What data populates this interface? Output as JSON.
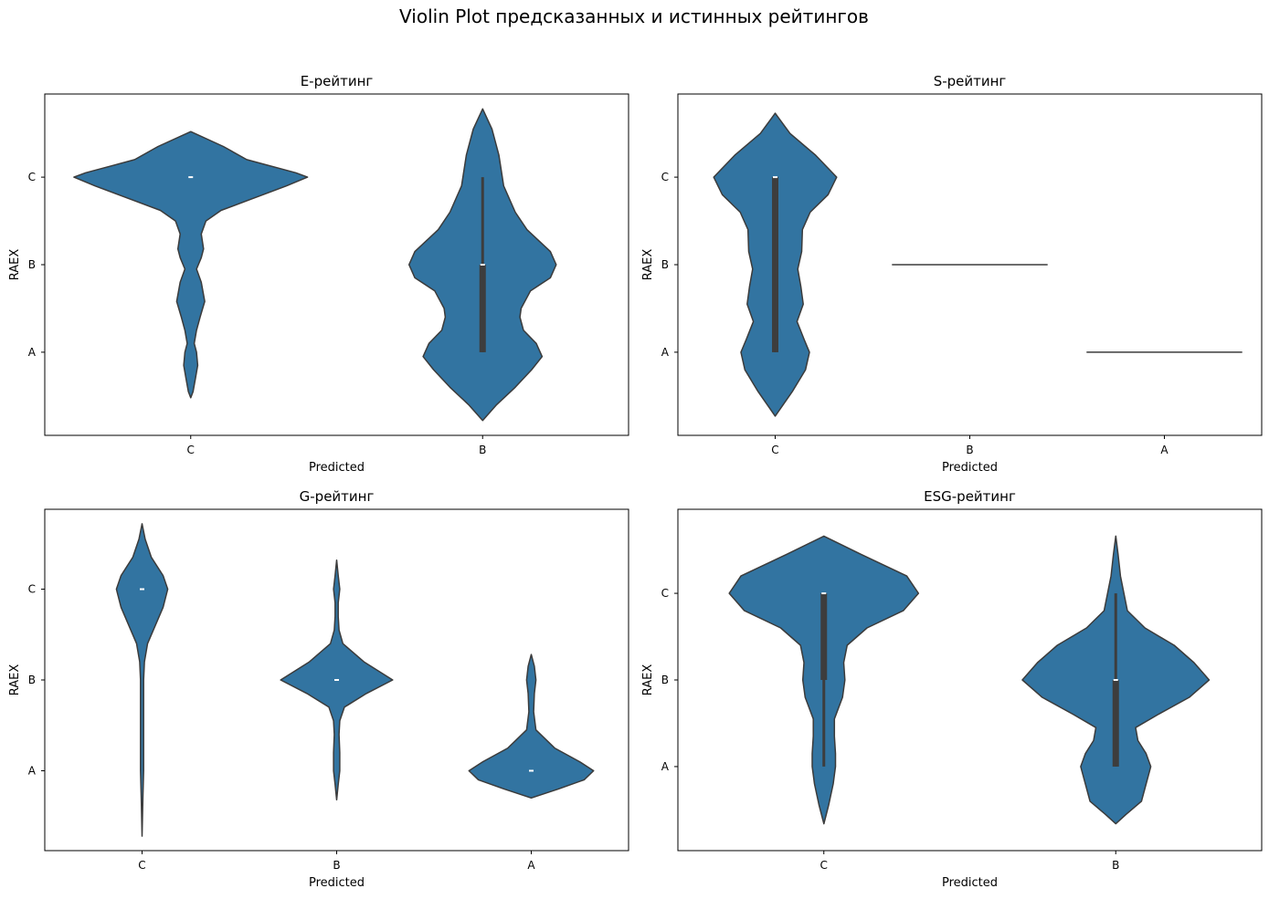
{
  "figure": {
    "suptitle": "Violin Plot предсказанных и истинных рейтингов",
    "violin_color": "#3274a1",
    "edge_color": "#3b3b3b",
    "box_color": "#3d3d3d"
  },
  "chart_data": [
    {
      "type": "violin",
      "title": "E-рейтинг",
      "xlabel": "Predicted",
      "ylabel": "RAEX",
      "categories": [
        "C",
        "B"
      ],
      "y_ticks": [
        "C",
        "B",
        "A"
      ],
      "y_tick_values": [
        0,
        1,
        2
      ],
      "ylim": [
        -0.95,
        2.95
      ],
      "violins": [
        {
          "category": "C",
          "extent": [
            -0.52,
            2.52
          ],
          "median": 0,
          "q1": 0,
          "q3": 0,
          "whisker": [
            0,
            0
          ],
          "profile": [
            [
              -0.52,
              0.0
            ],
            [
              -0.35,
              0.28
            ],
            [
              -0.2,
              0.48
            ],
            [
              -0.05,
              0.9
            ],
            [
              0.0,
              1.0
            ],
            [
              0.1,
              0.82
            ],
            [
              0.25,
              0.52
            ],
            [
              0.38,
              0.26
            ],
            [
              0.5,
              0.13
            ],
            [
              0.65,
              0.09
            ],
            [
              0.82,
              0.11
            ],
            [
              0.92,
              0.09
            ],
            [
              1.05,
              0.05
            ],
            [
              1.2,
              0.09
            ],
            [
              1.42,
              0.12
            ],
            [
              1.6,
              0.08
            ],
            [
              1.75,
              0.05
            ],
            [
              1.9,
              0.03
            ],
            [
              2.0,
              0.05
            ],
            [
              2.15,
              0.06
            ],
            [
              2.3,
              0.04
            ],
            [
              2.45,
              0.02
            ],
            [
              2.52,
              0.0
            ]
          ]
        },
        {
          "category": "B",
          "extent": [
            -0.78,
            2.78
          ],
          "median": 1,
          "q1": 1,
          "q3": 2,
          "whisker": [
            0,
            2
          ],
          "profile": [
            [
              -0.78,
              0.0
            ],
            [
              -0.55,
              0.08
            ],
            [
              -0.25,
              0.14
            ],
            [
              0.1,
              0.18
            ],
            [
              0.4,
              0.28
            ],
            [
              0.6,
              0.38
            ],
            [
              0.85,
              0.58
            ],
            [
              1.0,
              0.63
            ],
            [
              1.15,
              0.58
            ],
            [
              1.3,
              0.41
            ],
            [
              1.5,
              0.33
            ],
            [
              1.6,
              0.32
            ],
            [
              1.75,
              0.35
            ],
            [
              1.9,
              0.46
            ],
            [
              2.05,
              0.51
            ],
            [
              2.2,
              0.42
            ],
            [
              2.4,
              0.28
            ],
            [
              2.6,
              0.12
            ],
            [
              2.78,
              0.0
            ]
          ]
        }
      ]
    },
    {
      "type": "violin",
      "title": "S-рейтинг",
      "xlabel": "Predicted",
      "ylabel": "RAEX",
      "categories": [
        "C",
        "B",
        "A"
      ],
      "y_ticks": [
        "C",
        "B",
        "A"
      ],
      "y_tick_values": [
        0,
        1,
        2
      ],
      "ylim": [
        -0.95,
        2.95
      ],
      "violins": [
        {
          "category": "C",
          "extent": [
            -0.73,
            2.73
          ],
          "median": 0,
          "q1": 0,
          "q3": 2,
          "whisker": [
            0,
            2
          ],
          "profile": [
            [
              -0.73,
              0.0
            ],
            [
              -0.5,
              0.19
            ],
            [
              -0.25,
              0.52
            ],
            [
              0.0,
              0.79
            ],
            [
              0.2,
              0.68
            ],
            [
              0.4,
              0.45
            ],
            [
              0.6,
              0.35
            ],
            [
              0.85,
              0.34
            ],
            [
              1.05,
              0.29
            ],
            [
              1.25,
              0.33
            ],
            [
              1.45,
              0.36
            ],
            [
              1.65,
              0.28
            ],
            [
              1.85,
              0.37
            ],
            [
              2.0,
              0.44
            ],
            [
              2.2,
              0.39
            ],
            [
              2.45,
              0.22
            ],
            [
              2.73,
              0.0
            ]
          ]
        },
        {
          "category": "B",
          "extent": [
            1,
            1
          ],
          "median": 1,
          "q1": 1,
          "q3": 1,
          "whisker": [
            1,
            1
          ],
          "profile": []
        },
        {
          "category": "A",
          "extent": [
            2,
            2
          ],
          "median": 2,
          "q1": 2,
          "q3": 2,
          "whisker": [
            2,
            2
          ],
          "profile": []
        }
      ]
    },
    {
      "type": "violin",
      "title": "G-рейтинг",
      "xlabel": "Predicted",
      "ylabel": "RAEX",
      "categories": [
        "C",
        "B",
        "A"
      ],
      "y_ticks": [
        "C",
        "B",
        "A"
      ],
      "y_tick_values": [
        0,
        1,
        2
      ],
      "ylim": [
        -0.88,
        2.88
      ],
      "violins": [
        {
          "category": "C",
          "extent": [
            -0.72,
            2.72
          ],
          "median": 0,
          "q1": 0,
          "q3": 0,
          "whisker": [
            0,
            0
          ],
          "profile": [
            [
              -0.72,
              0.0
            ],
            [
              -0.55,
              0.04
            ],
            [
              -0.35,
              0.12
            ],
            [
              -0.15,
              0.27
            ],
            [
              0.0,
              0.33
            ],
            [
              0.2,
              0.27
            ],
            [
              0.4,
              0.17
            ],
            [
              0.6,
              0.07
            ],
            [
              0.8,
              0.03
            ],
            [
              1.0,
              0.02
            ],
            [
              1.5,
              0.02
            ],
            [
              1.85,
              0.02
            ],
            [
              2.0,
              0.02
            ],
            [
              2.3,
              0.01
            ],
            [
              2.72,
              0.0
            ]
          ]
        },
        {
          "category": "B",
          "extent": [
            -0.32,
            2.32
          ],
          "median": 1,
          "q1": 1,
          "q3": 1,
          "whisker": [
            1,
            1
          ],
          "profile": [
            [
              -0.32,
              0.0
            ],
            [
              -0.15,
              0.02
            ],
            [
              0.0,
              0.04
            ],
            [
              0.15,
              0.02
            ],
            [
              0.3,
              0.02
            ],
            [
              0.45,
              0.03
            ],
            [
              0.6,
              0.08
            ],
            [
              0.8,
              0.35
            ],
            [
              1.0,
              0.72
            ],
            [
              1.15,
              0.38
            ],
            [
              1.3,
              0.1
            ],
            [
              1.45,
              0.04
            ],
            [
              1.6,
              0.03
            ],
            [
              1.8,
              0.04
            ],
            [
              2.0,
              0.04
            ],
            [
              2.15,
              0.02
            ],
            [
              2.32,
              0.0
            ]
          ]
        },
        {
          "category": "A",
          "extent": [
            0.72,
            2.3
          ],
          "median": 2,
          "q1": 2,
          "q3": 2,
          "whisker": [
            2,
            2
          ],
          "profile": [
            [
              0.72,
              0.0
            ],
            [
              0.85,
              0.04
            ],
            [
              1.0,
              0.06
            ],
            [
              1.15,
              0.04
            ],
            [
              1.35,
              0.03
            ],
            [
              1.55,
              0.06
            ],
            [
              1.75,
              0.3
            ],
            [
              1.9,
              0.62
            ],
            [
              2.0,
              0.8
            ],
            [
              2.1,
              0.68
            ],
            [
              2.2,
              0.35
            ],
            [
              2.3,
              0.0
            ]
          ]
        }
      ]
    },
    {
      "type": "violin",
      "title": "ESG-рейтинг",
      "xlabel": "Predicted",
      "ylabel": "RAEX",
      "categories": [
        "C",
        "B"
      ],
      "y_ticks": [
        "C",
        "B",
        "A"
      ],
      "y_tick_values": [
        0,
        1,
        2
      ],
      "ylim": [
        -0.97,
        2.97
      ],
      "violins": [
        {
          "category": "C",
          "extent": [
            -0.66,
            2.66
          ],
          "median": 0,
          "q1": 0,
          "q3": 1,
          "whisker": [
            0,
            2
          ],
          "profile": [
            [
              -0.66,
              0.0
            ],
            [
              -0.45,
              0.32
            ],
            [
              -0.2,
              0.71
            ],
            [
              0.0,
              0.81
            ],
            [
              0.2,
              0.68
            ],
            [
              0.4,
              0.37
            ],
            [
              0.6,
              0.2
            ],
            [
              0.8,
              0.17
            ],
            [
              1.0,
              0.18
            ],
            [
              1.2,
              0.16
            ],
            [
              1.45,
              0.09
            ],
            [
              1.65,
              0.09
            ],
            [
              1.85,
              0.1
            ],
            [
              2.0,
              0.1
            ],
            [
              2.2,
              0.08
            ],
            [
              2.45,
              0.04
            ],
            [
              2.66,
              0.0
            ]
          ]
        },
        {
          "category": "B",
          "extent": [
            -0.66,
            2.66
          ],
          "median": 1,
          "q1": 1,
          "q3": 2,
          "whisker": [
            0,
            2
          ],
          "profile": [
            [
              -0.66,
              0.0
            ],
            [
              -0.45,
              0.02
            ],
            [
              -0.2,
              0.04
            ],
            [
              0.0,
              0.07
            ],
            [
              0.2,
              0.1
            ],
            [
              0.4,
              0.25
            ],
            [
              0.6,
              0.5
            ],
            [
              0.8,
              0.67
            ],
            [
              1.0,
              0.8
            ],
            [
              1.2,
              0.63
            ],
            [
              1.4,
              0.36
            ],
            [
              1.55,
              0.17
            ],
            [
              1.7,
              0.19
            ],
            [
              1.85,
              0.26
            ],
            [
              2.0,
              0.3
            ],
            [
              2.2,
              0.26
            ],
            [
              2.4,
              0.22
            ],
            [
              2.55,
              0.09
            ],
            [
              2.66,
              0.0
            ]
          ]
        }
      ]
    }
  ]
}
